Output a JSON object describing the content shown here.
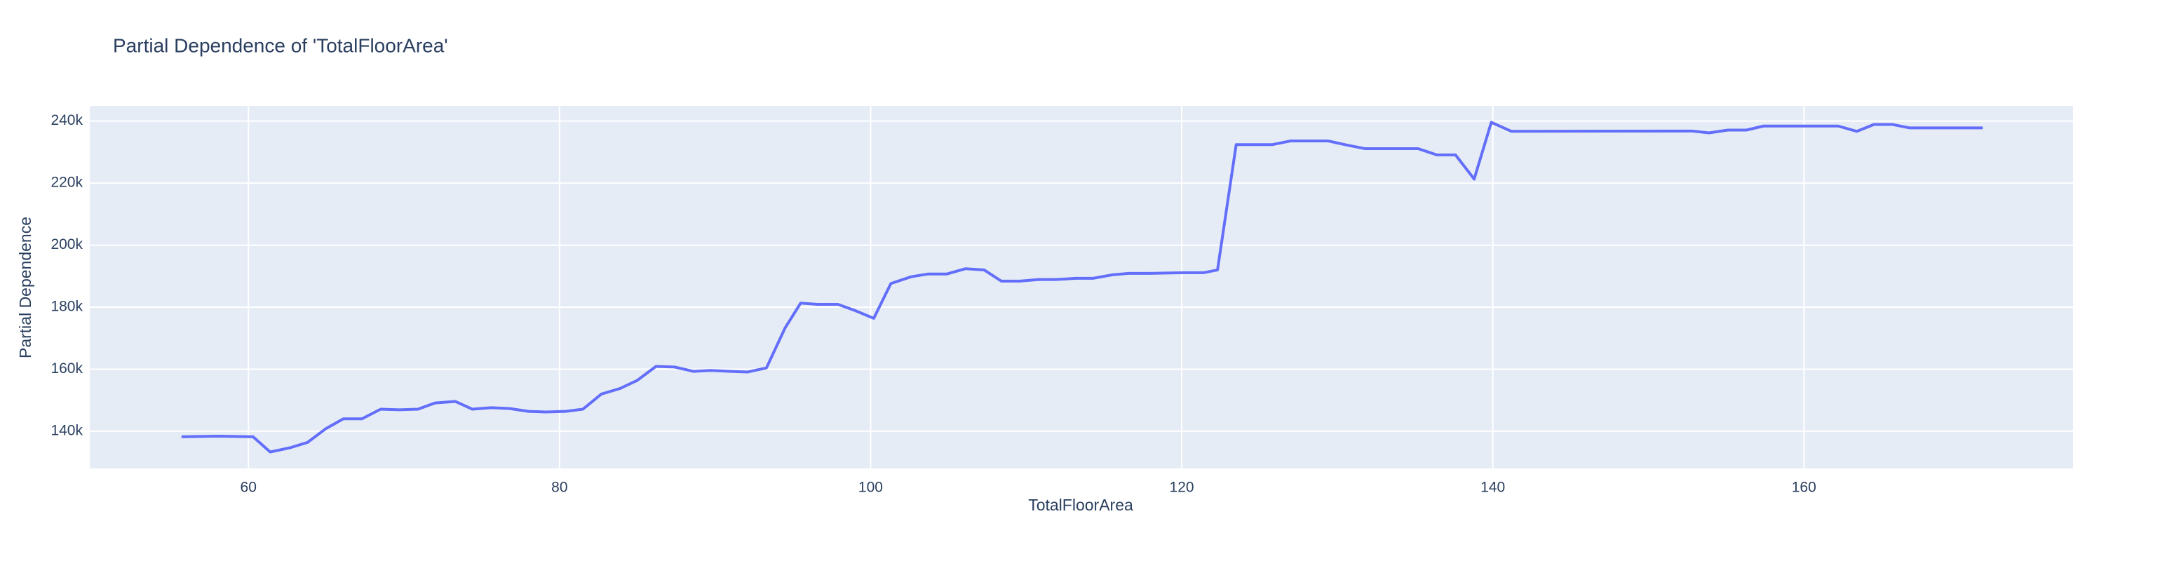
{
  "chart_data": {
    "type": "line",
    "title": "Partial Dependence of 'TotalFloorArea'",
    "x_label": "TotalFloorArea",
    "y_label": "Partial Dependence",
    "x": [
      55.7,
      58.0,
      60.3,
      61.4,
      62.7,
      63.8,
      65.0,
      66.1,
      67.3,
      68.5,
      69.7,
      70.9,
      72.0,
      73.3,
      74.4,
      75.6,
      76.8,
      78.0,
      79.1,
      80.4,
      81.5,
      82.7,
      83.9,
      85.0,
      86.2,
      87.4,
      88.6,
      89.7,
      91.0,
      92.1,
      93.3,
      94.5,
      95.5,
      96.6,
      97.9,
      99.0,
      100.2,
      101.3,
      102.6,
      103.7,
      104.9,
      106.1,
      107.3,
      108.4,
      109.6,
      110.8,
      111.9,
      113.2,
      114.3,
      115.5,
      116.6,
      117.9,
      119.0,
      120.2,
      121.4,
      122.3,
      123.5,
      124.7,
      125.8,
      127.0,
      128.2,
      129.4,
      130.5,
      131.8,
      132.9,
      134.1,
      135.2,
      136.4,
      137.6,
      138.8,
      139.9,
      141.2,
      152.8,
      153.9,
      155.1,
      156.3,
      157.4,
      158.7,
      159.8,
      161.0,
      162.2,
      163.4,
      164.5,
      165.7,
      166.8,
      168.1,
      171.5
    ],
    "series": [
      {
        "color": "#636efa",
        "values": [
          138200,
          138400,
          138200,
          133300,
          134700,
          136400,
          140900,
          144000,
          144000,
          147100,
          146900,
          147100,
          149100,
          149600,
          147100,
          147600,
          147300,
          146400,
          146200,
          146400,
          147100,
          152000,
          153800,
          156400,
          160900,
          160700,
          159300,
          159600,
          159300,
          159100,
          160400,
          173300,
          181300,
          180900,
          180900,
          178900,
          176400,
          187600,
          189800,
          190700,
          190700,
          192400,
          192000,
          188400,
          188400,
          188900,
          188900,
          189300,
          189300,
          190400,
          190900,
          190900,
          191000,
          191100,
          191100,
          192000,
          232400,
          232400,
          232400,
          233600,
          233600,
          233600,
          232400,
          231100,
          231100,
          231100,
          231100,
          229100,
          229100,
          221300,
          239600,
          236700,
          236800,
          236200,
          237100,
          237100,
          238400,
          238400,
          238400,
          238400,
          238400,
          236700,
          238900,
          238900,
          237800,
          237800,
          237800
        ]
      }
    ],
    "xlim": [
      49.8,
      177.3
    ],
    "ylim": [
      128000,
      244900
    ],
    "xticks": [
      60,
      80,
      100,
      120,
      140,
      160
    ],
    "yticks": [
      {
        "value": 140000,
        "label": "140k"
      },
      {
        "value": 160000,
        "label": "160k"
      },
      {
        "value": 180000,
        "label": "180k"
      },
      {
        "value": 200000,
        "label": "200k"
      },
      {
        "value": 220000,
        "label": "220k"
      },
      {
        "value": 240000,
        "label": "240k"
      }
    ],
    "grid": true
  }
}
